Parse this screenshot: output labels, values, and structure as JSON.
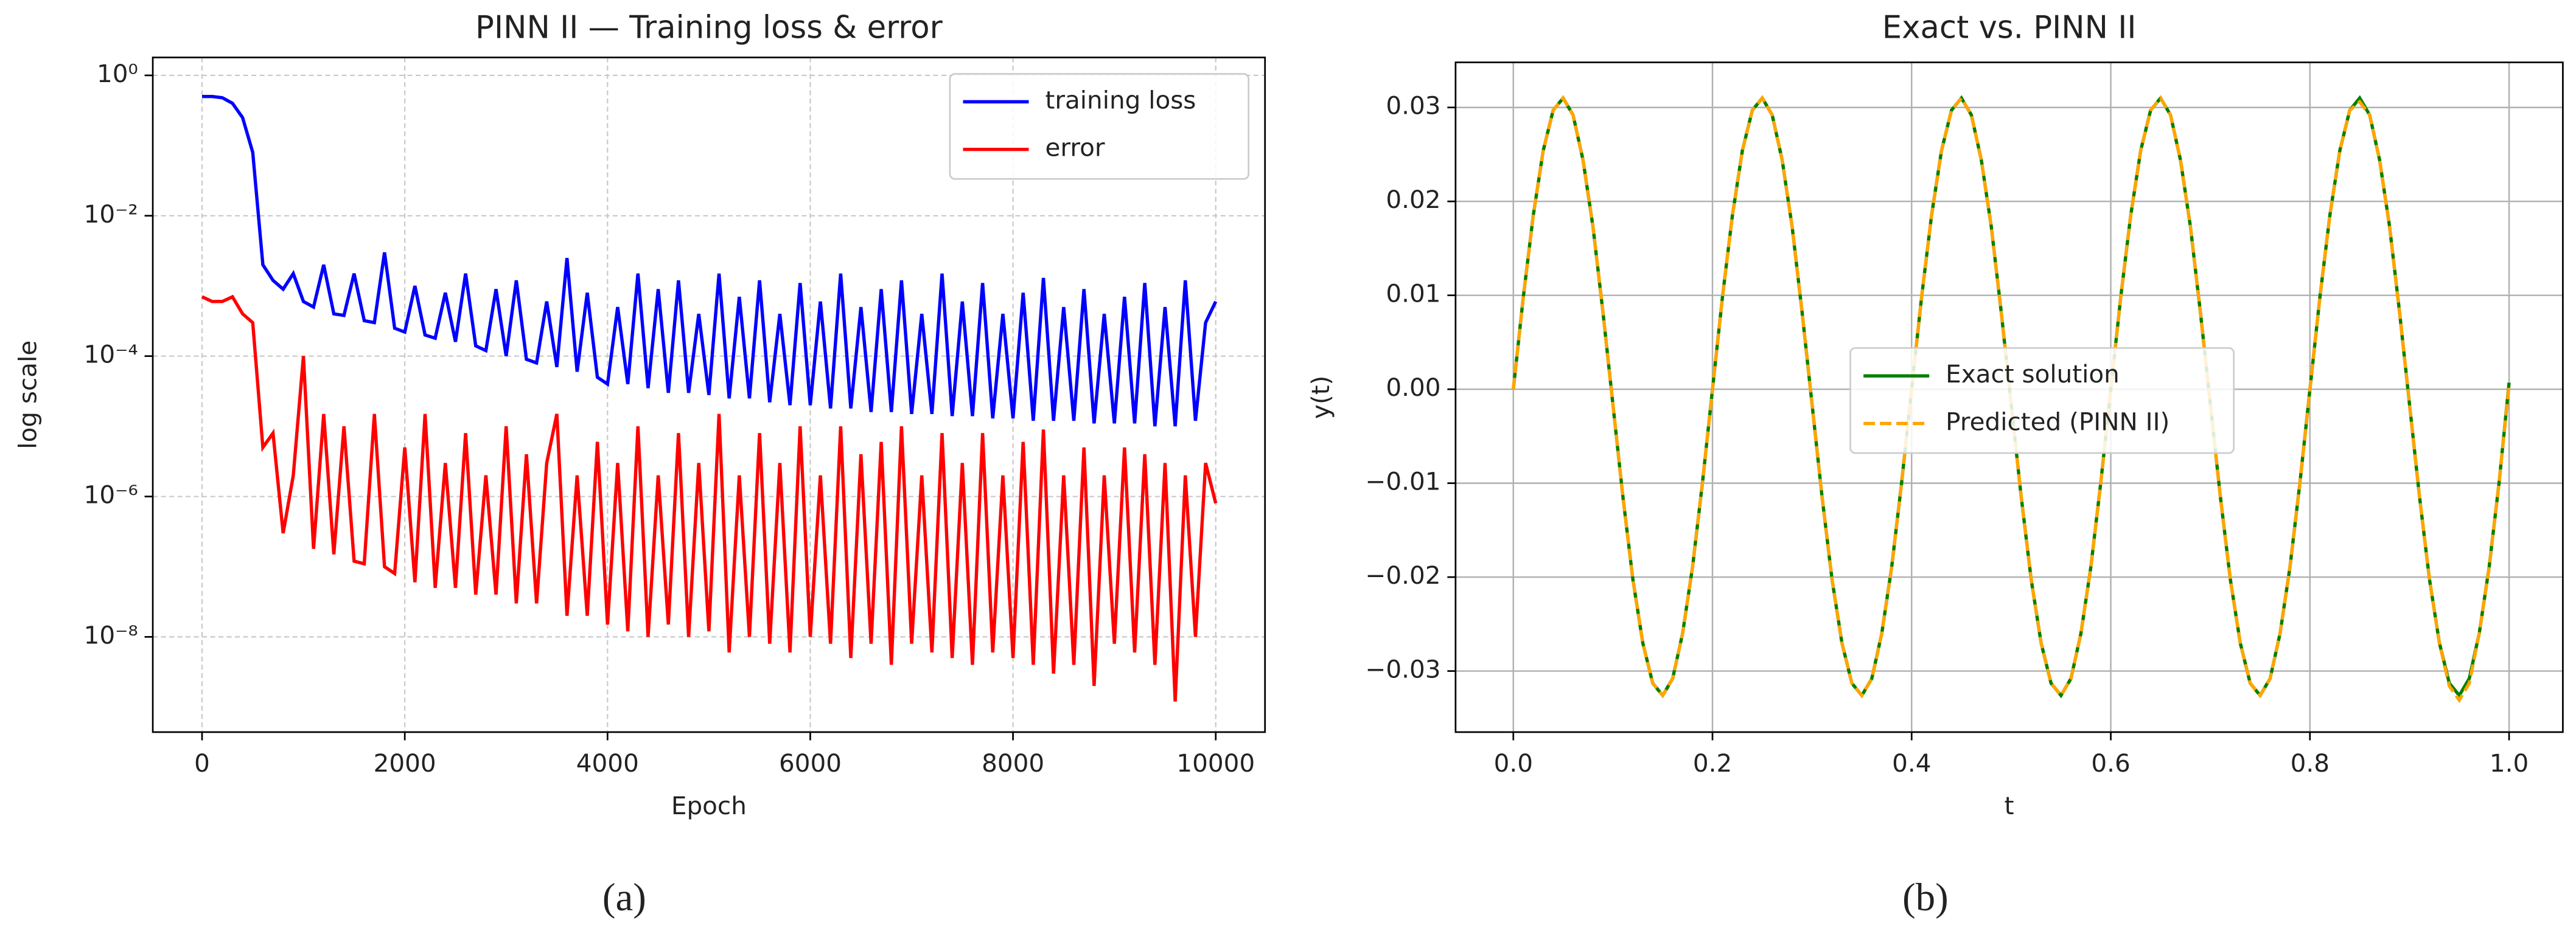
{
  "chart_data": [
    {
      "type": "line",
      "title": "PINN II — Training loss & error",
      "caption": "(a)",
      "xlabel": "Epoch",
      "ylabel": "log scale",
      "yscale": "log",
      "grid": "dashed",
      "legend": "upper right",
      "xlim": [
        -486,
        10486
      ],
      "xticks": [
        0,
        2000,
        4000,
        6000,
        8000,
        10000
      ],
      "ylim": [
        4.4e-10,
        1.8
      ],
      "yticks": [
        {
          "value": 1e-08,
          "label": "10⁻⁸"
        },
        {
          "value": 1e-06,
          "label": "10⁻⁶"
        },
        {
          "value": 0.0001,
          "label": "10⁻⁴"
        },
        {
          "value": 0.01,
          "label": "10⁻²"
        },
        {
          "value": 1,
          "label": "10⁰"
        }
      ],
      "x": [
        0,
        100,
        200,
        300,
        400,
        500,
        600,
        700,
        800,
        900,
        1000,
        1100,
        1200,
        1300,
        1400,
        1500,
        1600,
        1700,
        1800,
        1900,
        2000,
        2100,
        2200,
        2300,
        2400,
        2500,
        2600,
        2700,
        2800,
        2900,
        3000,
        3100,
        3200,
        3300,
        3400,
        3500,
        3600,
        3700,
        3800,
        3900,
        4000,
        4100,
        4200,
        4300,
        4400,
        4500,
        4600,
        4700,
        4800,
        4900,
        5000,
        5100,
        5200,
        5300,
        5400,
        5500,
        5600,
        5700,
        5800,
        5900,
        6000,
        6100,
        6200,
        6300,
        6400,
        6500,
        6600,
        6700,
        6800,
        6900,
        7000,
        7100,
        7200,
        7300,
        7400,
        7500,
        7600,
        7700,
        7800,
        7900,
        8000,
        8100,
        8200,
        8300,
        8400,
        8500,
        8600,
        8700,
        8800,
        8900,
        9000,
        9100,
        9200,
        9300,
        9400,
        9500,
        9600,
        9700,
        9800,
        9900,
        10000
      ],
      "series": [
        {
          "name": "training loss",
          "color": "#0000ff",
          "linestyle": "solid",
          "values": [
            0.5,
            0.5,
            0.48,
            0.4,
            0.25,
            0.08,
            0.002,
            0.0012,
            0.0009,
            0.0015,
            0.0006,
            0.0005,
            0.002,
            0.0004,
            0.00038,
            0.0015,
            0.00032,
            0.0003,
            0.003,
            0.00025,
            0.00022,
            0.001,
            0.0002,
            0.00018,
            0.0008,
            0.00016,
            0.0015,
            0.00014,
            0.00012,
            0.0009,
            0.0001,
            0.0012,
            9e-05,
            8e-05,
            0.0006,
            7e-05,
            0.0025,
            6e-05,
            0.0008,
            5e-05,
            4e-05,
            0.0005,
            4e-05,
            0.0015,
            3.5e-05,
            0.0009,
            3e-05,
            0.0012,
            3e-05,
            0.0004,
            2.8e-05,
            0.0015,
            2.5e-05,
            0.0007,
            2.5e-05,
            0.0012,
            2.2e-05,
            0.0004,
            2e-05,
            0.0011,
            2e-05,
            0.0006,
            1.8e-05,
            0.0015,
            1.8e-05,
            0.0005,
            1.6e-05,
            0.0009,
            1.6e-05,
            0.0012,
            1.5e-05,
            0.0004,
            1.5e-05,
            0.0015,
            1.4e-05,
            0.0006,
            1.4e-05,
            0.0011,
            1.3e-05,
            0.0004,
            1.3e-05,
            0.0008,
            1.2e-05,
            0.0013,
            1.2e-05,
            0.0005,
            1.2e-05,
            0.0009,
            1.1e-05,
            0.0004,
            1.1e-05,
            0.0007,
            1.1e-05,
            0.0011,
            1e-05,
            0.0005,
            1e-05,
            0.0012,
            1.2e-05,
            0.0003,
            0.0006
          ]
        },
        {
          "name": "error",
          "color": "#ff0000",
          "linestyle": "solid",
          "values": [
            0.0007,
            0.0006,
            0.0006,
            0.0007,
            0.0004,
            0.0003,
            5e-06,
            8e-06,
            3e-07,
            2e-06,
            0.0001,
            1.8e-07,
            1.5e-05,
            1.5e-07,
            1e-05,
            1.2e-07,
            1.1e-07,
            1.5e-05,
            1e-07,
            8e-08,
            5e-06,
            6e-08,
            1.5e-05,
            5e-08,
            3e-06,
            5e-08,
            8e-06,
            4e-08,
            2e-06,
            4e-08,
            1e-05,
            3e-08,
            4e-06,
            3e-08,
            3e-06,
            1.5e-05,
            2e-08,
            2e-06,
            2e-08,
            6e-06,
            1.5e-08,
            3e-06,
            1.2e-08,
            1e-05,
            1e-08,
            2e-06,
            1.5e-08,
            8e-06,
            1e-08,
            3e-06,
            1.2e-08,
            1.5e-05,
            6e-09,
            2e-06,
            1e-08,
            8e-06,
            8e-09,
            3e-06,
            6e-09,
            1e-05,
            1e-08,
            2e-06,
            8e-09,
            1e-05,
            5e-09,
            4e-06,
            8e-09,
            6e-06,
            4e-09,
            1e-05,
            8e-09,
            2e-06,
            6e-09,
            8e-06,
            5e-09,
            3e-06,
            4e-09,
            8e-06,
            6e-09,
            2e-06,
            5e-09,
            6e-06,
            4e-09,
            9e-06,
            3e-09,
            2e-06,
            4e-09,
            5e-06,
            2e-09,
            2e-06,
            8e-09,
            5e-06,
            6e-09,
            4e-06,
            4e-09,
            3e-06,
            1.2e-09,
            2e-06,
            1e-08,
            3e-06,
            8e-07
          ]
        }
      ]
    },
    {
      "type": "line",
      "title": "Exact vs. PINN II",
      "caption": "(b)",
      "xlabel": "t",
      "ylabel": "y(t)",
      "grid": "solid",
      "legend": "center",
      "xlim": [
        -0.058,
        1.054
      ],
      "xticks": [
        {
          "value": 0,
          "label": "0.0"
        },
        {
          "value": 0.2,
          "label": "0.2"
        },
        {
          "value": 0.4,
          "label": "0.4"
        },
        {
          "value": 0.6,
          "label": "0.6"
        },
        {
          "value": 0.8,
          "label": "0.8"
        },
        {
          "value": 1,
          "label": "1.0"
        }
      ],
      "ylim": [
        -0.0365,
        0.0348
      ],
      "yticks": [
        {
          "value": -0.03,
          "label": "−0.03"
        },
        {
          "value": -0.02,
          "label": "−0.02"
        },
        {
          "value": -0.01,
          "label": "−0.01"
        },
        {
          "value": 0,
          "label": "0.00"
        },
        {
          "value": 0.01,
          "label": "0.01"
        },
        {
          "value": 0.02,
          "label": "0.02"
        },
        {
          "value": 0.03,
          "label": "0.03"
        }
      ],
      "x": [
        0,
        0.01,
        0.02,
        0.03,
        0.04,
        0.05,
        0.06,
        0.07,
        0.08,
        0.09,
        0.1,
        0.11,
        0.12,
        0.13,
        0.14,
        0.15,
        0.16,
        0.17,
        0.18,
        0.19,
        0.2,
        0.21,
        0.22,
        0.23,
        0.24,
        0.25,
        0.26,
        0.27,
        0.28,
        0.29,
        0.3,
        0.31,
        0.32,
        0.33,
        0.34,
        0.35,
        0.36,
        0.37,
        0.38,
        0.39,
        0.4,
        0.41,
        0.42,
        0.43,
        0.44,
        0.45,
        0.46,
        0.47,
        0.48,
        0.49,
        0.5,
        0.51,
        0.52,
        0.53,
        0.54,
        0.55,
        0.56,
        0.57,
        0.58,
        0.59,
        0.6,
        0.61,
        0.62,
        0.63,
        0.64,
        0.65,
        0.66,
        0.67,
        0.68,
        0.69,
        0.7,
        0.71,
        0.72,
        0.73,
        0.74,
        0.75,
        0.76,
        0.77,
        0.78,
        0.79,
        0.8,
        0.81,
        0.82,
        0.83,
        0.84,
        0.85,
        0.86,
        0.87,
        0.88,
        0.89,
        0.9,
        0.91,
        0.92,
        0.93,
        0.94,
        0.95,
        0.96,
        0.97,
        0.98,
        0.99,
        1
      ],
      "series": [
        {
          "name": "Exact solution",
          "color": "#008000",
          "linestyle": "solid",
          "values": [
            0,
            0.0098,
            0.0185,
            0.0254,
            0.0297,
            0.031,
            0.0292,
            0.0244,
            0.0173,
            0.0082,
            -0.0016,
            -0.0114,
            -0.0202,
            -0.027,
            -0.0313,
            -0.0326,
            -0.0308,
            -0.026,
            -0.0189,
            -0.0099,
            0,
            0.0098,
            0.0185,
            0.0254,
            0.0297,
            0.031,
            0.0292,
            0.0244,
            0.0173,
            0.0082,
            -0.0016,
            -0.0114,
            -0.0202,
            -0.027,
            -0.0313,
            -0.0326,
            -0.0308,
            -0.026,
            -0.0189,
            -0.0099,
            0,
            0.0098,
            0.0185,
            0.0254,
            0.0297,
            0.031,
            0.0292,
            0.0244,
            0.0173,
            0.0082,
            -0.0016,
            -0.0114,
            -0.0202,
            -0.027,
            -0.0313,
            -0.0326,
            -0.0308,
            -0.026,
            -0.0189,
            -0.0099,
            0,
            0.0098,
            0.0185,
            0.0254,
            0.0297,
            0.031,
            0.0292,
            0.0244,
            0.0173,
            0.0082,
            -0.0016,
            -0.0114,
            -0.0202,
            -0.027,
            -0.0313,
            -0.0326,
            -0.0308,
            -0.026,
            -0.0189,
            -0.0099,
            0,
            0.0098,
            0.0185,
            0.0254,
            0.0297,
            0.031,
            0.0292,
            0.0244,
            0.0173,
            0.0082,
            -0.0016,
            -0.0114,
            -0.0202,
            -0.027,
            -0.0313,
            -0.0326,
            -0.0308,
            -0.026,
            -0.0189,
            -0.0099,
            0.0007
          ]
        },
        {
          "name": "Predicted (PINN II)",
          "color": "#ffa500",
          "linestyle": "dashed",
          "values": [
            0,
            0.0098,
            0.0185,
            0.0254,
            0.0297,
            0.031,
            0.0292,
            0.0244,
            0.0173,
            0.0082,
            -0.0016,
            -0.0114,
            -0.0202,
            -0.027,
            -0.0313,
            -0.0326,
            -0.0308,
            -0.026,
            -0.0189,
            -0.0099,
            0,
            0.0098,
            0.0185,
            0.0254,
            0.0297,
            0.031,
            0.0292,
            0.0244,
            0.0173,
            0.0082,
            -0.0016,
            -0.0114,
            -0.0202,
            -0.027,
            -0.0313,
            -0.0326,
            -0.0308,
            -0.026,
            -0.0189,
            -0.0099,
            0,
            0.0098,
            0.0185,
            0.0254,
            0.0297,
            0.031,
            0.0292,
            0.0244,
            0.0173,
            0.0082,
            -0.0016,
            -0.0114,
            -0.0202,
            -0.027,
            -0.0313,
            -0.0326,
            -0.0308,
            -0.026,
            -0.0189,
            -0.0099,
            0,
            0.0098,
            0.0185,
            0.0254,
            0.0297,
            0.031,
            0.0292,
            0.0244,
            0.0173,
            0.0082,
            -0.0016,
            -0.0114,
            -0.0202,
            -0.027,
            -0.0313,
            -0.0326,
            -0.0308,
            -0.026,
            -0.0189,
            -0.0099,
            0,
            0.0098,
            0.0185,
            0.0254,
            0.0297,
            0.0306,
            0.0292,
            0.0244,
            0.0173,
            0.0082,
            -0.0016,
            -0.0114,
            -0.0202,
            -0.027,
            -0.0316,
            -0.0331,
            -0.0313,
            -0.026,
            -0.0189,
            -0.0099,
            0.0005
          ]
        }
      ]
    }
  ]
}
